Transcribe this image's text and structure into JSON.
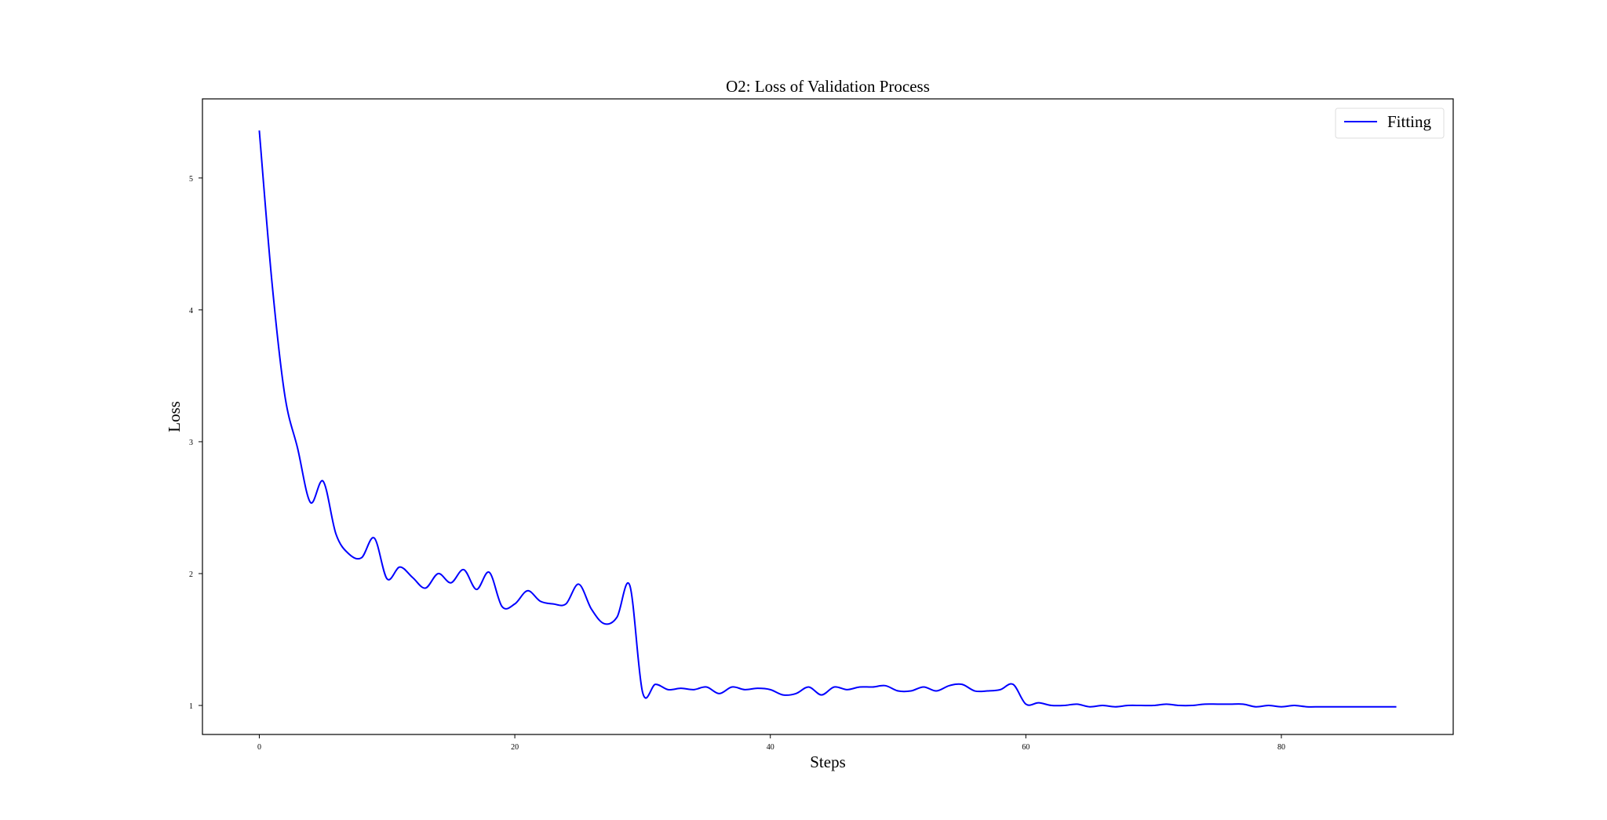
{
  "chart_data": {
    "type": "line",
    "title": "O2: Loss of Validation Process",
    "xlabel": "Steps",
    "ylabel": "Loss",
    "xlim": [
      -4.45,
      93.45
    ],
    "ylim": [
      0.78,
      5.6
    ],
    "xticks": [
      0,
      20,
      40,
      60,
      80
    ],
    "yticks": [
      1,
      2,
      3,
      4,
      5
    ],
    "grid": false,
    "legend_position": "top-right",
    "series": [
      {
        "name": "Fitting",
        "color": "#0000ff",
        "x": [
          0,
          1,
          2,
          3,
          4,
          5,
          6,
          7,
          8,
          9,
          10,
          11,
          12,
          13,
          14,
          15,
          16,
          17,
          18,
          19,
          20,
          21,
          22,
          23,
          24,
          25,
          26,
          27,
          28,
          29,
          30,
          31,
          32,
          33,
          34,
          35,
          36,
          37,
          38,
          39,
          40,
          41,
          42,
          43,
          44,
          45,
          46,
          47,
          48,
          49,
          50,
          51,
          52,
          53,
          54,
          55,
          56,
          57,
          58,
          59,
          60,
          61,
          62,
          63,
          64,
          65,
          66,
          67,
          68,
          69,
          70,
          71,
          72,
          73,
          74,
          75,
          76,
          77,
          78,
          79,
          80,
          81,
          82,
          83,
          84,
          85,
          86,
          87,
          88,
          89
        ],
        "y": [
          5.36,
          4.2,
          3.35,
          2.95,
          2.54,
          2.7,
          2.3,
          2.15,
          2.12,
          2.27,
          1.96,
          2.05,
          1.97,
          1.89,
          2.0,
          1.93,
          2.03,
          1.88,
          2.01,
          1.75,
          1.77,
          1.87,
          1.79,
          1.77,
          1.77,
          1.92,
          1.73,
          1.62,
          1.67,
          1.91,
          1.1,
          1.16,
          1.12,
          1.13,
          1.12,
          1.14,
          1.09,
          1.14,
          1.12,
          1.13,
          1.12,
          1.08,
          1.09,
          1.14,
          1.08,
          1.14,
          1.12,
          1.14,
          1.14,
          1.15,
          1.11,
          1.11,
          1.14,
          1.11,
          1.15,
          1.16,
          1.11,
          1.11,
          1.12,
          1.16,
          1.01,
          1.02,
          1.0,
          1.0,
          1.01,
          0.99,
          1.0,
          0.99,
          1.0,
          1.0,
          1.0,
          1.01,
          1.0,
          1.0,
          1.01,
          1.01,
          1.01,
          1.01,
          0.99,
          1.0,
          0.99,
          1.0,
          0.99,
          0.99,
          0.99,
          0.99,
          0.99,
          0.99,
          0.99,
          0.99
        ]
      }
    ]
  }
}
